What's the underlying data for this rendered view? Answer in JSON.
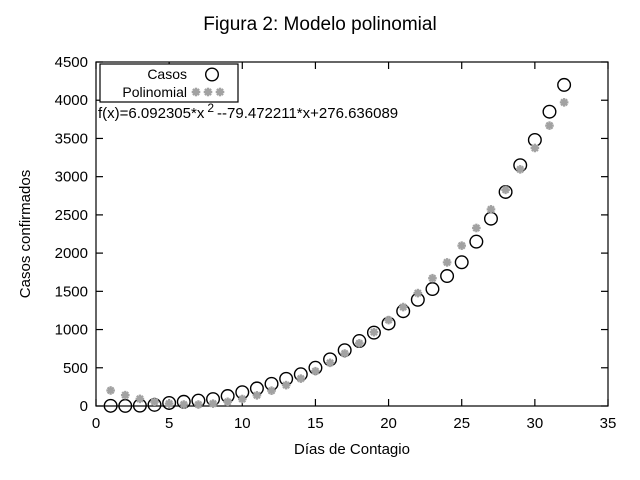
{
  "figure": {
    "equation": {
      "prefix": "f(x)=6.092305*x",
      "sup": "2",
      "suffix": "--79.472211*x+276.636089"
    }
  },
  "colors": {
    "background": "#ffffff",
    "axis": "#000000",
    "casos_marker": "#000000",
    "polinomial_marker": "#a2a2a2"
  },
  "chart_data": {
    "type": "scatter",
    "title": "Figura 2: Modelo polinomial",
    "xlabel": "Días de Contagio",
    "ylabel": "Casos confirmados",
    "annotation": "f(x)=6.092305*x^2 --79.472211*x+276.636089",
    "xlim": [
      0,
      35
    ],
    "ylim": [
      0,
      4500
    ],
    "xticks": [
      0,
      5,
      10,
      15,
      20,
      25,
      30,
      35
    ],
    "yticks": [
      0,
      500,
      1000,
      1500,
      2000,
      2500,
      3000,
      3500,
      4000,
      4500
    ],
    "grid": false,
    "legend_position": "top-left",
    "x": [
      1,
      2,
      3,
      4,
      5,
      6,
      7,
      8,
      9,
      10,
      11,
      12,
      13,
      14,
      15,
      16,
      17,
      18,
      19,
      20,
      21,
      22,
      23,
      24,
      25,
      26,
      27,
      28,
      29,
      30,
      31,
      32
    ],
    "series": [
      {
        "name": "Casos",
        "marker": "open-circle",
        "color": "#000000",
        "values": [
          2,
          1,
          5,
          15,
          40,
          55,
          70,
          90,
          130,
          180,
          230,
          290,
          355,
          415,
          500,
          610,
          730,
          850,
          960,
          1080,
          1240,
          1390,
          1530,
          1700,
          1880,
          2150,
          2450,
          2800,
          3150,
          3480,
          3850,
          4200
        ]
      },
      {
        "name": "Polinomial",
        "marker": "asterisk",
        "color": "#a2a2a2",
        "values": [
          203.3,
          142.1,
          93.1,
          56.2,
          31.6,
          19.1,
          18.9,
          30.8,
          54.9,
          91.1,
          139.6,
          200.3,
          273.1,
          358.1,
          455.3,
          564.7,
          686.3,
          820.0,
          966.0,
          1124.1,
          1294.4,
          1476.9,
          1671.6,
          1878.5,
          2097.5,
          2328.8,
          2572.2,
          2827.8,
          3095.6,
          3375.5,
          3667.7,
          3972.0
        ]
      }
    ]
  }
}
